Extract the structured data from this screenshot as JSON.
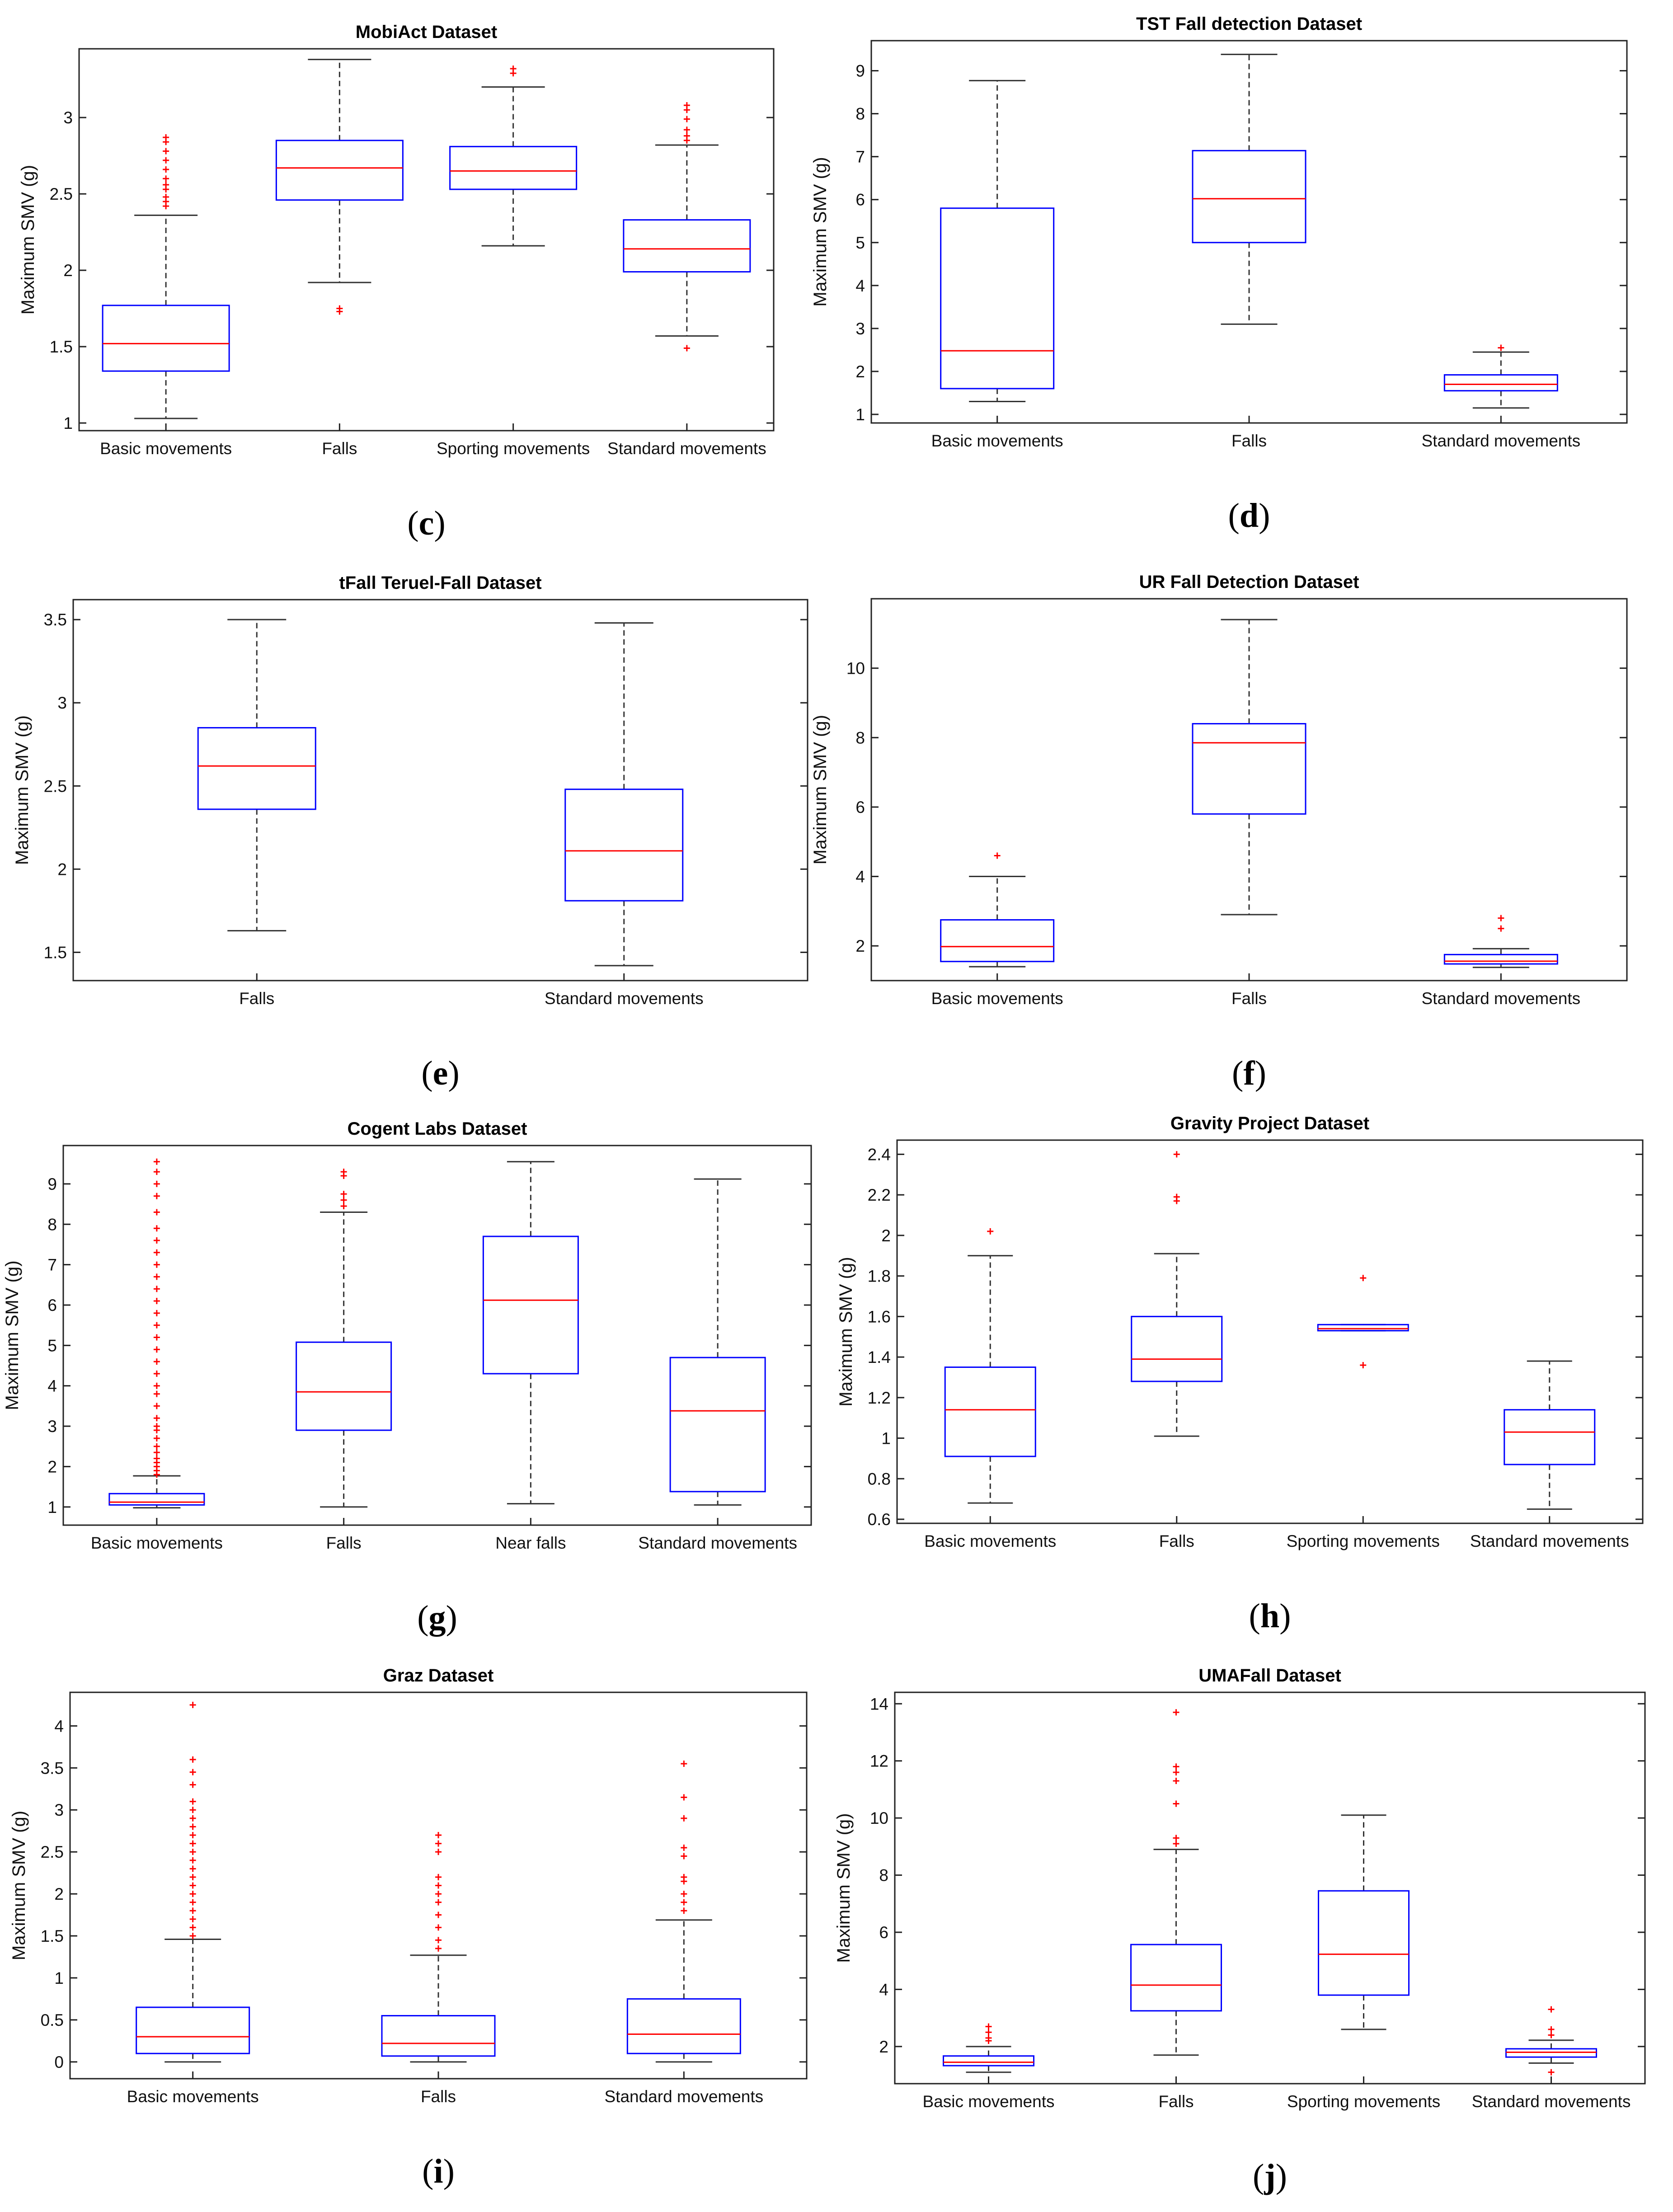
{
  "figure": {
    "y_axis_label": "Maximum SMV (g)"
  },
  "chart_data": [
    {
      "panel": "c",
      "type": "box",
      "title": "MobiAct Dataset",
      "ylabel": "Maximum SMV (g)",
      "ylim": [
        0.95,
        3.45
      ],
      "yticks": [
        1,
        1.5,
        2,
        2.5,
        3
      ],
      "categories": [
        "Basic movements",
        "Falls",
        "Sporting movements",
        "Standard movements"
      ],
      "boxes": [
        {
          "lower_whisker": 1.03,
          "q1": 1.34,
          "median": 1.52,
          "q3": 1.77,
          "upper_whisker": 2.36,
          "outliers": [
            2.42,
            2.45,
            2.48,
            2.53,
            2.56,
            2.6,
            2.66,
            2.72,
            2.78,
            2.84,
            2.87
          ]
        },
        {
          "lower_whisker": 1.92,
          "q1": 2.46,
          "median": 2.67,
          "q3": 2.85,
          "upper_whisker": 3.38,
          "outliers": [
            1.73,
            1.75
          ]
        },
        {
          "lower_whisker": 2.16,
          "q1": 2.53,
          "median": 2.65,
          "q3": 2.81,
          "upper_whisker": 3.2,
          "outliers": [
            3.29,
            3.32
          ]
        },
        {
          "lower_whisker": 1.57,
          "q1": 1.99,
          "median": 2.14,
          "q3": 2.33,
          "upper_whisker": 2.82,
          "outliers": [
            1.49,
            2.85,
            2.88,
            2.92,
            2.99,
            3.05,
            3.08
          ]
        }
      ]
    },
    {
      "panel": "d",
      "type": "box",
      "title": "TST Fall detection  Dataset",
      "ylabel": "Maximum SMV (g)",
      "ylim": [
        0.8,
        9.7
      ],
      "yticks": [
        1,
        2,
        3,
        4,
        5,
        6,
        7,
        8,
        9
      ],
      "categories": [
        "Basic movements",
        "Falls",
        "Standard movements"
      ],
      "boxes": [
        {
          "lower_whisker": 1.3,
          "q1": 1.6,
          "median": 2.48,
          "q3": 5.8,
          "upper_whisker": 8.77,
          "outliers": []
        },
        {
          "lower_whisker": 3.1,
          "q1": 5.0,
          "median": 6.02,
          "q3": 7.14,
          "upper_whisker": 9.38,
          "outliers": []
        },
        {
          "lower_whisker": 1.15,
          "q1": 1.55,
          "median": 1.7,
          "q3": 1.92,
          "upper_whisker": 2.45,
          "outliers": [
            2.55
          ]
        }
      ]
    },
    {
      "panel": "e",
      "type": "box",
      "title": "tFall Teruel-Fall  Dataset",
      "ylabel": "Maximum SMV (g)",
      "ylim": [
        1.33,
        3.62
      ],
      "yticks": [
        1.5,
        2,
        2.5,
        3,
        3.5
      ],
      "categories": [
        "Falls",
        "Standard movements"
      ],
      "boxes": [
        {
          "lower_whisker": 1.63,
          "q1": 2.36,
          "median": 2.62,
          "q3": 2.85,
          "upper_whisker": 3.5,
          "outliers": []
        },
        {
          "lower_whisker": 1.42,
          "q1": 1.81,
          "median": 2.11,
          "q3": 2.48,
          "upper_whisker": 3.48,
          "outliers": []
        }
      ]
    },
    {
      "panel": "f",
      "type": "box",
      "title": "UR Fall Detection Dataset",
      "ylabel": "Maximum SMV (g)",
      "ylim": [
        1.0,
        12.0
      ],
      "yticks": [
        2,
        4,
        6,
        8,
        10
      ],
      "categories": [
        "Basic movements",
        "Falls",
        "Standard movements"
      ],
      "boxes": [
        {
          "lower_whisker": 1.4,
          "q1": 1.55,
          "median": 1.98,
          "q3": 2.75,
          "upper_whisker": 4.0,
          "outliers": [
            4.6
          ]
        },
        {
          "lower_whisker": 2.9,
          "q1": 5.8,
          "median": 7.85,
          "q3": 8.4,
          "upper_whisker": 11.4,
          "outliers": []
        },
        {
          "lower_whisker": 1.38,
          "q1": 1.48,
          "median": 1.56,
          "q3": 1.75,
          "upper_whisker": 1.92,
          "outliers": [
            2.5,
            2.8
          ]
        }
      ]
    },
    {
      "panel": "g",
      "type": "box",
      "title": "Cogent Labs Dataset",
      "ylabel": "Maximum SMV (g)",
      "ylim": [
        0.55,
        9.95
      ],
      "yticks": [
        1,
        2,
        3,
        4,
        5,
        6,
        7,
        8,
        9
      ],
      "categories": [
        "Basic movements",
        "Falls",
        "Near falls",
        "Standard movements"
      ],
      "boxes": [
        {
          "lower_whisker": 0.98,
          "q1": 1.05,
          "median": 1.12,
          "q3": 1.33,
          "upper_whisker": 1.77,
          "outliers": [
            1.8,
            1.9,
            2.0,
            2.1,
            2.2,
            2.35,
            2.5,
            2.7,
            2.9,
            3.0,
            3.2,
            3.5,
            3.8,
            4.0,
            4.3,
            4.6,
            4.9,
            5.2,
            5.5,
            5.8,
            6.1,
            6.4,
            6.7,
            7.0,
            7.3,
            7.6,
            7.9,
            8.3,
            8.7,
            9.0,
            9.3,
            9.55
          ]
        },
        {
          "lower_whisker": 1.0,
          "q1": 2.9,
          "median": 3.85,
          "q3": 5.08,
          "upper_whisker": 8.3,
          "outliers": [
            8.45,
            8.6,
            8.75,
            9.2,
            9.3
          ]
        },
        {
          "lower_whisker": 1.08,
          "q1": 4.3,
          "median": 6.12,
          "q3": 7.7,
          "upper_whisker": 9.55,
          "outliers": []
        },
        {
          "lower_whisker": 1.05,
          "q1": 1.38,
          "median": 3.38,
          "q3": 4.7,
          "upper_whisker": 9.12,
          "outliers": []
        }
      ]
    },
    {
      "panel": "h",
      "type": "box",
      "title": "Gravity Project Dataset",
      "ylabel": "Maximum SMV (g)",
      "ylim": [
        0.58,
        2.47
      ],
      "yticks": [
        0.6,
        0.8,
        1,
        1.2,
        1.4,
        1.6,
        1.8,
        2,
        2.2,
        2.4
      ],
      "categories": [
        "Basic movements",
        "Falls",
        "Sporting movements",
        "Standard movements"
      ],
      "boxes": [
        {
          "lower_whisker": 0.68,
          "q1": 0.91,
          "median": 1.14,
          "q3": 1.35,
          "upper_whisker": 1.9,
          "outliers": [
            2.02
          ]
        },
        {
          "lower_whisker": 1.01,
          "q1": 1.28,
          "median": 1.39,
          "q3": 1.6,
          "upper_whisker": 1.91,
          "outliers": [
            2.17,
            2.19,
            2.4
          ]
        },
        {
          "lower_whisker": 1.53,
          "q1": 1.53,
          "median": 1.54,
          "q3": 1.56,
          "upper_whisker": 1.56,
          "outliers": [
            1.36,
            1.79
          ]
        },
        {
          "lower_whisker": 0.65,
          "q1": 0.87,
          "median": 1.03,
          "q3": 1.14,
          "upper_whisker": 1.38,
          "outliers": []
        }
      ]
    },
    {
      "panel": "i",
      "type": "box",
      "title": "Graz Dataset",
      "ylabel": "Maximum SMV (g)",
      "ylim": [
        -0.2,
        4.4
      ],
      "yticks": [
        0,
        0.5,
        1,
        1.5,
        2,
        2.5,
        3,
        3.5,
        4
      ],
      "categories": [
        "Basic movements",
        "Falls",
        "Standard movements"
      ],
      "boxes": [
        {
          "lower_whisker": 0.0,
          "q1": 0.1,
          "median": 0.3,
          "q3": 0.65,
          "upper_whisker": 1.46,
          "outliers": [
            1.5,
            1.6,
            1.7,
            1.8,
            1.9,
            2.0,
            2.1,
            2.2,
            2.3,
            2.4,
            2.5,
            2.6,
            2.7,
            2.8,
            2.9,
            3.0,
            3.1,
            3.3,
            3.45,
            3.6,
            4.25
          ]
        },
        {
          "lower_whisker": 0.0,
          "q1": 0.07,
          "median": 0.22,
          "q3": 0.55,
          "upper_whisker": 1.27,
          "outliers": [
            1.35,
            1.45,
            1.6,
            1.75,
            1.9,
            2.0,
            2.1,
            2.2,
            2.5,
            2.6,
            2.7
          ]
        },
        {
          "lower_whisker": 0.0,
          "q1": 0.1,
          "median": 0.33,
          "q3": 0.75,
          "upper_whisker": 1.69,
          "outliers": [
            1.8,
            1.9,
            2.0,
            2.15,
            2.2,
            2.45,
            2.55,
            2.9,
            3.15,
            3.55
          ]
        }
      ]
    },
    {
      "panel": "j",
      "type": "box",
      "title": "UMAFall Dataset",
      "ylabel": "Maximum SMV (g)",
      "ylim": [
        0.7,
        14.4
      ],
      "yticks": [
        2,
        4,
        6,
        8,
        10,
        12,
        14
      ],
      "categories": [
        "Basic movements",
        "Falls",
        "Sporting movements",
        "Standard movements"
      ],
      "boxes": [
        {
          "lower_whisker": 1.1,
          "q1": 1.33,
          "median": 1.45,
          "q3": 1.67,
          "upper_whisker": 2.0,
          "outliers": [
            2.2,
            2.3,
            2.5,
            2.7
          ]
        },
        {
          "lower_whisker": 1.7,
          "q1": 3.25,
          "median": 4.15,
          "q3": 5.57,
          "upper_whisker": 8.9,
          "outliers": [
            9.1,
            9.3,
            10.5,
            11.3,
            11.6,
            11.8,
            13.7
          ]
        },
        {
          "lower_whisker": 2.6,
          "q1": 3.8,
          "median": 5.23,
          "q3": 7.45,
          "upper_whisker": 10.1,
          "outliers": []
        },
        {
          "lower_whisker": 1.42,
          "q1": 1.63,
          "median": 1.8,
          "q3": 1.92,
          "upper_whisker": 2.22,
          "outliers": [
            1.1,
            2.4,
            2.6,
            3.3
          ]
        }
      ]
    }
  ]
}
